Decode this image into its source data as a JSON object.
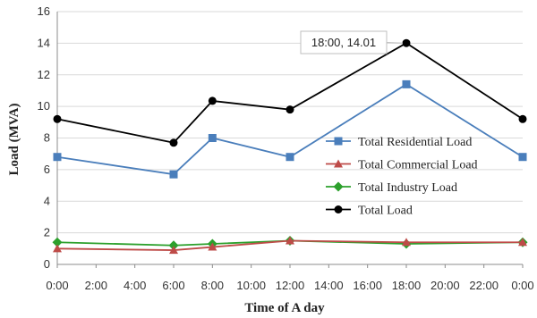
{
  "chart_data": {
    "type": "line",
    "xlabel": "Time of A day",
    "ylabel": "Load (MVA)",
    "x_ticks": [
      "0:00",
      "2:00",
      "4:00",
      "6:00",
      "8:00",
      "10:00",
      "12:00",
      "14:00",
      "16:00",
      "18:00",
      "20:00",
      "22:00",
      "0:00"
    ],
    "y_ticks": [
      "0",
      "2",
      "4",
      "6",
      "8",
      "10",
      "12",
      "14",
      "16"
    ],
    "ylim": [
      0,
      16
    ],
    "xlim_hours": [
      0,
      24
    ],
    "grid": "horizontal",
    "legend_position": "center-right",
    "x_hours": [
      0,
      6,
      8,
      12,
      18,
      24
    ],
    "series": [
      {
        "name": "Total Residential Load",
        "color": "#4a7ebb",
        "marker": "square",
        "values": [
          6.8,
          5.7,
          8.0,
          6.8,
          11.4,
          6.8
        ]
      },
      {
        "name": "Total Commercial Load",
        "color": "#be4b48",
        "marker": "triangle",
        "values": [
          1.0,
          0.9,
          1.1,
          1.5,
          1.4,
          1.4
        ]
      },
      {
        "name": "Total Industry Load",
        "color": "#2ca02c",
        "marker": "diamond",
        "values": [
          1.4,
          1.2,
          1.3,
          1.5,
          1.3,
          1.4
        ]
      },
      {
        "name": "Total Load",
        "color": "#000000",
        "marker": "circle",
        "values": [
          9.2,
          7.7,
          10.35,
          9.8,
          14.01,
          9.2
        ]
      }
    ],
    "annotation": {
      "text": "18:00, 14.01",
      "series": "Total Load",
      "x_hour": 18,
      "y": 14.01
    }
  }
}
